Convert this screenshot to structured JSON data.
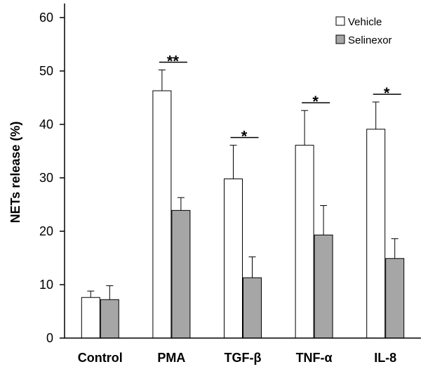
{
  "chart_data": {
    "type": "bar",
    "title": "",
    "xlabel": "",
    "ylabel": "NETs release (%)",
    "ylim": [
      0,
      60
    ],
    "yticks": [
      0,
      10,
      20,
      30,
      40,
      50,
      60
    ],
    "grid": false,
    "legend_position": "top-right",
    "categories": [
      "Control",
      "PMA",
      "TGF-β",
      "TNF-α",
      "IL-8"
    ],
    "series": [
      {
        "name": "Vehicle",
        "color": "#ffffff",
        "values": [
          7.6,
          46.3,
          29.8,
          36.1,
          39.1
        ],
        "error": [
          1.2,
          3.9,
          6.3,
          6.5,
          5.1
        ]
      },
      {
        "name": "Selinexor",
        "color": "#a6a6a6",
        "values": [
          7.2,
          23.9,
          11.3,
          19.3,
          14.9
        ],
        "error": [
          2.6,
          2.4,
          3.9,
          5.5,
          3.7
        ]
      }
    ],
    "annotations": [
      "",
      "**",
      "*",
      "*",
      "*"
    ]
  }
}
